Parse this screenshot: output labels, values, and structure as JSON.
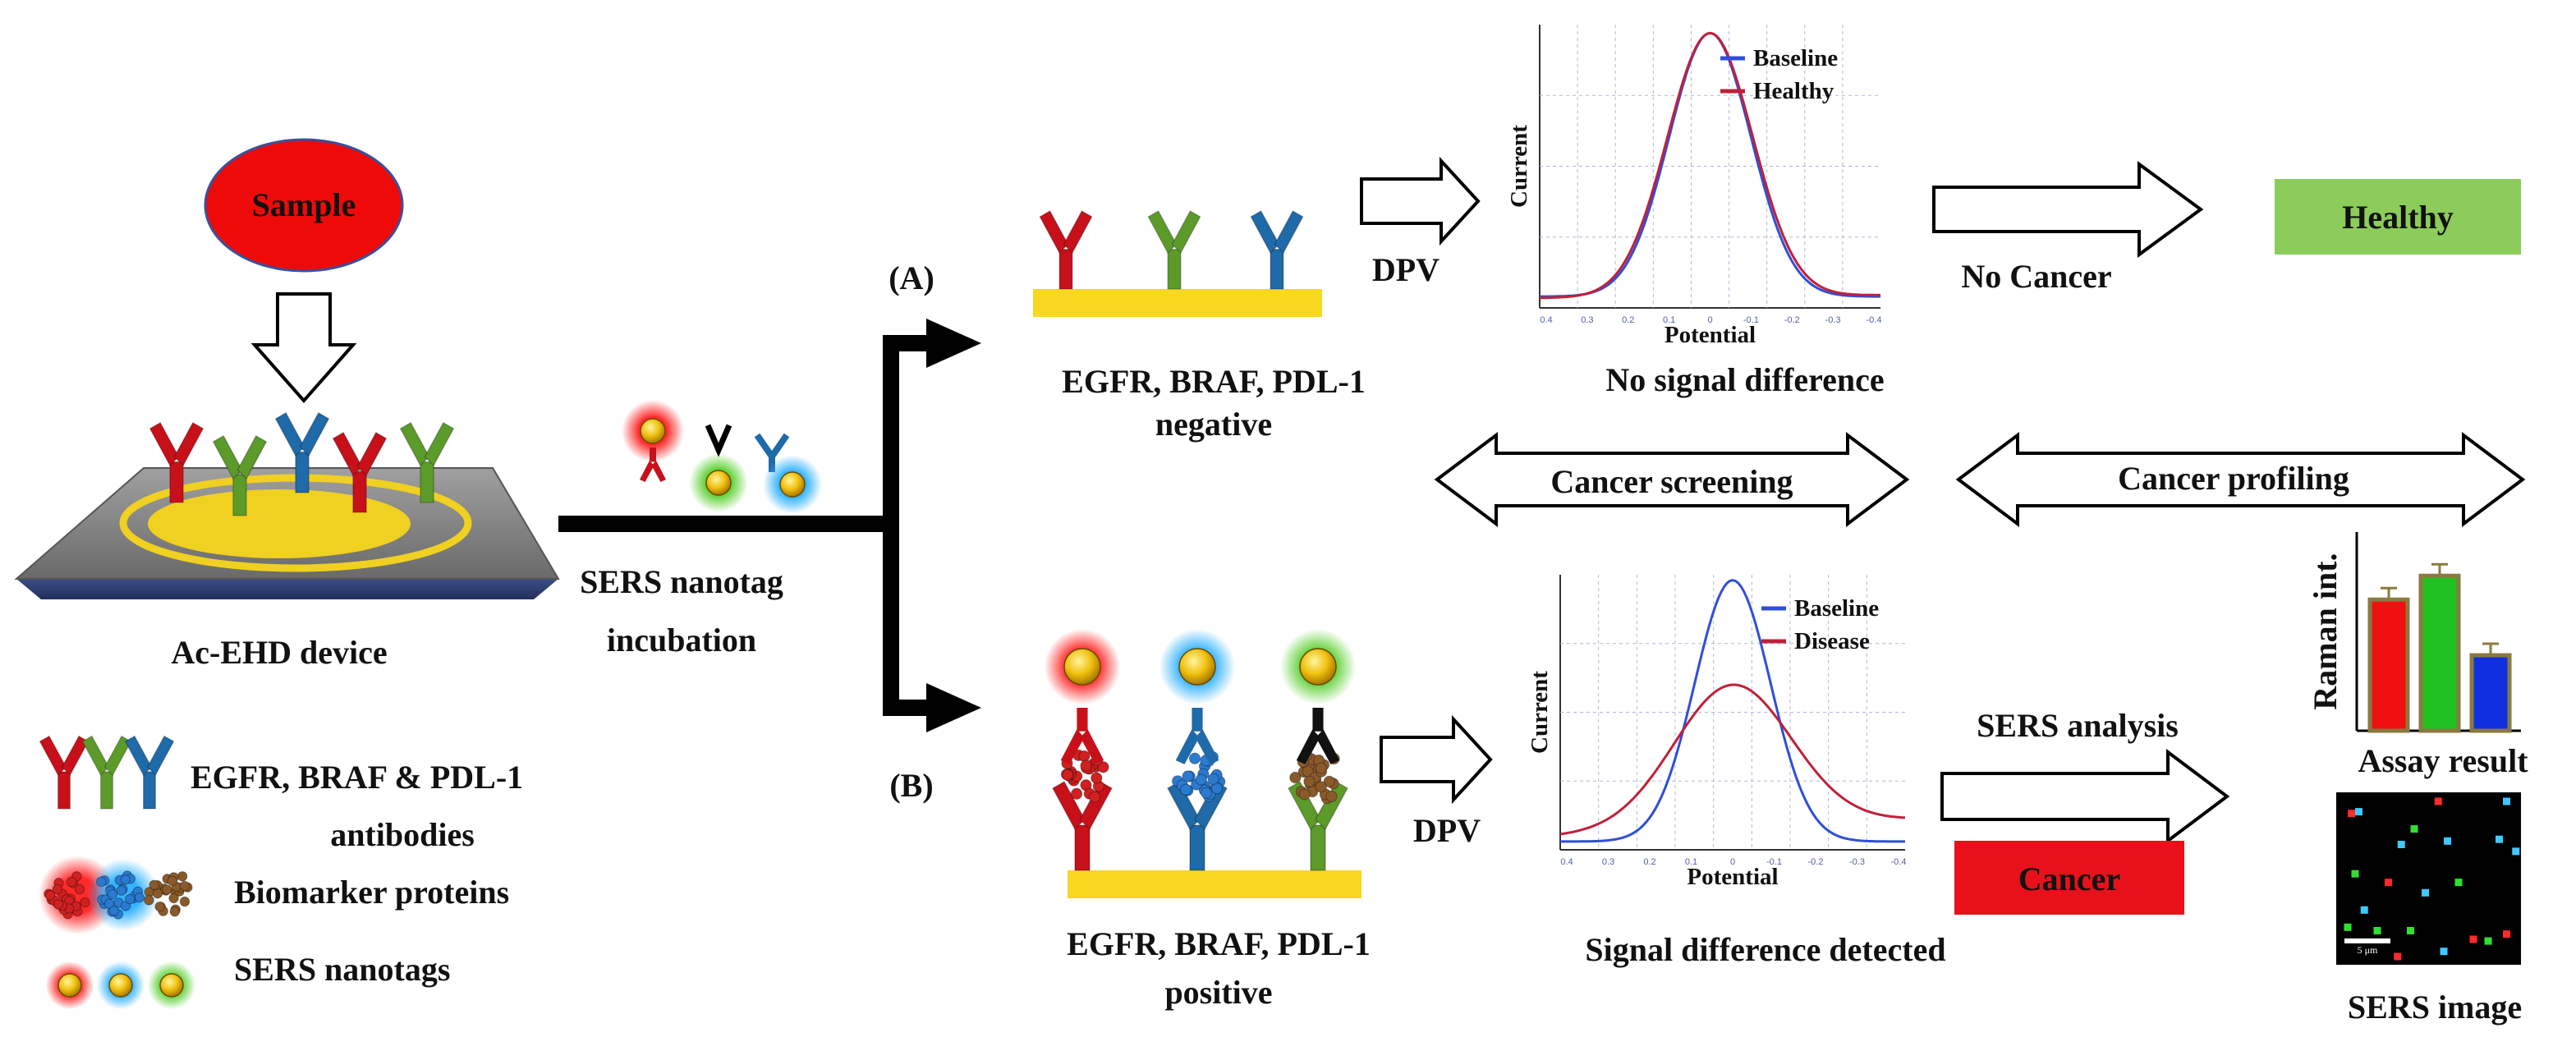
{
  "sample": {
    "label": "Sample"
  },
  "device": {
    "label": "Ac-EHD device"
  },
  "incubation": {
    "line1": "SERS nanotag",
    "line2": "incubation"
  },
  "branch_a": {
    "marker": "(A)",
    "method": "DPV",
    "result_line1": "EGFR, BRAF, PDL-1",
    "result_line2": "negative",
    "plot": {
      "ylabel": "Current",
      "xlabel": "Potential",
      "caption": "No signal difference",
      "legend": [
        {
          "name": "Baseline",
          "color": "#2f4fd8"
        },
        {
          "name": "Healthy",
          "color": "#c0203a"
        }
      ],
      "xticks": [
        "0.4",
        "0.3",
        "0.2",
        "0.1",
        "0",
        "-0.1",
        "-0.2",
        "-0.3",
        "-0.4"
      ]
    },
    "conclusion": "No Cancer",
    "outcome": "Healthy",
    "outcome_color": "#8ccc5a"
  },
  "branch_b": {
    "marker": "(B)",
    "method": "DPV",
    "result_line1": "EGFR, BRAF, PDL-1",
    "result_line2": "positive",
    "plot": {
      "ylabel": "Current",
      "xlabel": "Potential",
      "caption": "Signal difference  detected",
      "legend": [
        {
          "name": "Baseline",
          "color": "#2f4fd8"
        },
        {
          "name": "Disease",
          "color": "#c0203a"
        }
      ],
      "xticks": [
        "0.4",
        "0.3",
        "0.2",
        "0.1",
        "0",
        "-0.1",
        "-0.2",
        "-0.3",
        "-0.4"
      ]
    },
    "analysis": "SERS analysis",
    "outcome": "Cancer",
    "outcome_color": "#e8101a"
  },
  "screening": {
    "label": "Cancer screening"
  },
  "profiling": {
    "label": "Cancer profiling"
  },
  "assay": {
    "ylabel": "Raman int.",
    "caption": "Assay result",
    "values": [
      0.66,
      0.78,
      0.38
    ],
    "bar_colors": [
      "#f01010",
      "#20c020",
      "#1030e0"
    ]
  },
  "sers_image": {
    "caption": "SERS image",
    "scale_label": "5 μm"
  },
  "legend": {
    "antibodies_line1": "EGFR, BRAF & PDL-1",
    "antibodies_line2": "antibodies",
    "proteins": "Biomarker proteins",
    "nanotags": "SERS nanotags"
  },
  "colors": {
    "egfr": "#c8101a",
    "braf": "#5c9a2a",
    "pdl1": "#1f6aa8",
    "gold": "#f8d820"
  }
}
